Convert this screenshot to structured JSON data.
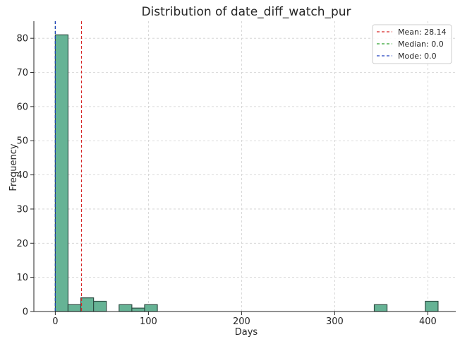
{
  "chart_data": {
    "type": "bar",
    "title": "Distribution of date_diff_watch_pur",
    "xlabel": "Days",
    "ylabel": "Frequency",
    "xlim": [
      -23,
      430
    ],
    "ylim": [
      0,
      85
    ],
    "xticks": [
      0,
      100,
      200,
      300,
      400
    ],
    "yticks": [
      0,
      10,
      20,
      30,
      40,
      50,
      60,
      70,
      80
    ],
    "grid": true,
    "legend_position": "top-right",
    "bin_width": 13.7,
    "bins": [
      {
        "start": 0.0,
        "count": 81
      },
      {
        "start": 13.7,
        "count": 2
      },
      {
        "start": 27.4,
        "count": 4
      },
      {
        "start": 41.1,
        "count": 3
      },
      {
        "start": 68.5,
        "count": 2
      },
      {
        "start": 82.2,
        "count": 1
      },
      {
        "start": 95.9,
        "count": 2
      },
      {
        "start": 342.5,
        "count": 2
      },
      {
        "start": 397.3,
        "count": 3
      }
    ],
    "lines": [
      {
        "label": "Mean: 28.14",
        "x": 28.14,
        "color": "#d62728"
      },
      {
        "label": "Median: 0.0",
        "x": 0.0,
        "color": "#2ca02c"
      },
      {
        "label": "Mode: 0.0",
        "x": 0.0,
        "color": "#1f3fbf"
      }
    ],
    "bar_color": "#66b395",
    "bar_edge": "#2f4f45"
  }
}
